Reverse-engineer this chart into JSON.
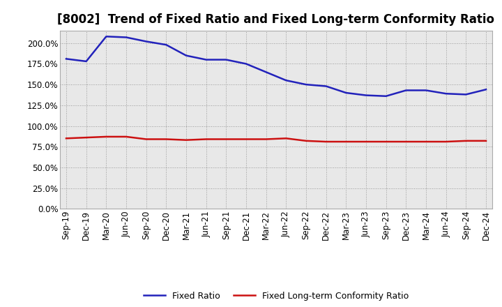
{
  "title": "[8002]  Trend of Fixed Ratio and Fixed Long-term Conformity Ratio",
  "x_labels": [
    "Sep-19",
    "Dec-19",
    "Mar-20",
    "Jun-20",
    "Sep-20",
    "Dec-20",
    "Mar-21",
    "Jun-21",
    "Sep-21",
    "Dec-21",
    "Mar-22",
    "Jun-22",
    "Sep-22",
    "Dec-22",
    "Mar-23",
    "Jun-23",
    "Sep-23",
    "Dec-23",
    "Mar-24",
    "Jun-24",
    "Sep-24",
    "Dec-24"
  ],
  "fixed_ratio": [
    181,
    178,
    208,
    207,
    202,
    198,
    185,
    180,
    180,
    175,
    165,
    155,
    150,
    148,
    140,
    137,
    136,
    143,
    143,
    139,
    138,
    144
  ],
  "fixed_lt_ratio": [
    85,
    86,
    87,
    87,
    84,
    84,
    83,
    84,
    84,
    84,
    84,
    85,
    82,
    81,
    81,
    81,
    81,
    81,
    81,
    81,
    82,
    82
  ],
  "ylim": [
    0,
    215
  ],
  "yticks": [
    0,
    25,
    50,
    75,
    100,
    125,
    150,
    175,
    200
  ],
  "blue_color": "#2222bb",
  "red_color": "#cc1111",
  "bg_color": "#ffffff",
  "plot_bg_color": "#e8e8e8",
  "grid_color": "#999999",
  "legend_fixed_ratio": "Fixed Ratio",
  "legend_fixed_lt_ratio": "Fixed Long-term Conformity Ratio",
  "title_fontsize": 12,
  "axis_fontsize": 8.5
}
